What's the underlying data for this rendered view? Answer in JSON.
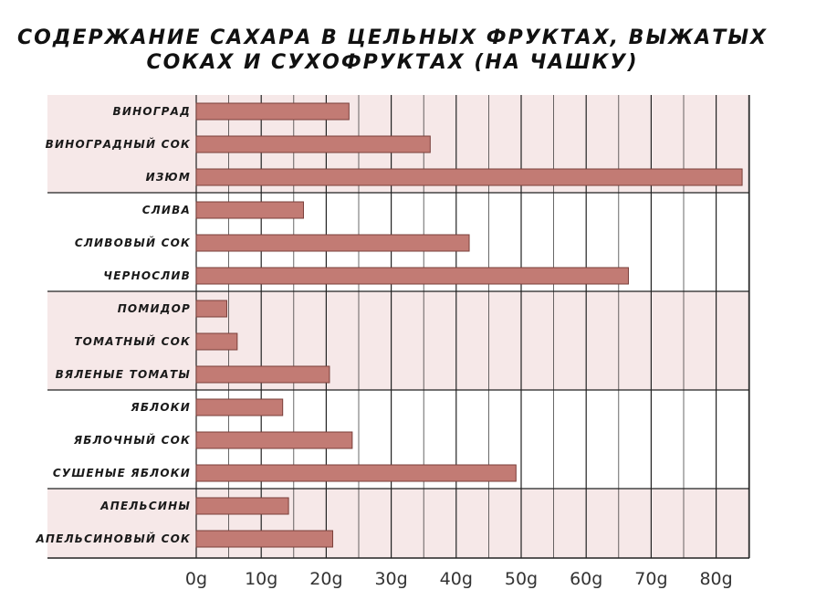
{
  "title": {
    "line1": "СОДЕРЖАНИЕ САХАРА В ЦЕЛЬНЫХ ФРУКТАХ, ВЫЖАТЫХ",
    "line2": "СОКАХ И СУХОФРУКТАХ (НА ЧАШКУ)"
  },
  "colors": {
    "bar": "#c27b74",
    "bar_stroke": "#7a3f3a",
    "band": "#f6e8e8",
    "grid": "#222222"
  },
  "chart_data": {
    "type": "bar",
    "orientation": "horizontal",
    "title": "СОДЕРЖАНИЕ САХАРА В ЦЕЛЬНЫХ ФРУКТАХ, ВЫЖАТЫХ СОКАХ И СУХОФРУКТАХ (НА ЧАШКУ)",
    "xlabel": "",
    "ylabel": "",
    "xlim": [
      0,
      85
    ],
    "ticks": [
      0,
      10,
      20,
      30,
      40,
      50,
      60,
      70,
      80
    ],
    "tick_labels": [
      "0g",
      "10g",
      "20g",
      "30g",
      "40g",
      "50g",
      "60g",
      "70g",
      "80g"
    ],
    "groups": [
      {
        "items": [
          {
            "label": "ВИНОГРАД",
            "value": 23.5
          },
          {
            "label": "ВИНОГРАДНЫЙ СОК",
            "value": 36
          },
          {
            "label": "ИЗЮМ",
            "value": 84
          }
        ]
      },
      {
        "items": [
          {
            "label": "СЛИВА",
            "value": 16.5
          },
          {
            "label": "СЛИВОВЫЙ СОК",
            "value": 42
          },
          {
            "label": "ЧЕРНОСЛИВ",
            "value": 66.5
          }
        ]
      },
      {
        "items": [
          {
            "label": "ПОМИДОР",
            "value": 4.7
          },
          {
            "label": "ТОМАТНЫЙ СОК",
            "value": 6.3
          },
          {
            "label": "ВЯЛЕНЫЕ ТОМАТЫ",
            "value": 20.5
          }
        ]
      },
      {
        "items": [
          {
            "label": "ЯБЛОКИ",
            "value": 13.3
          },
          {
            "label": "ЯБЛОЧНЫЙ СОК",
            "value": 24
          },
          {
            "label": "СУШЕНЫЕ ЯБЛОКИ",
            "value": 49.2
          }
        ]
      },
      {
        "items": [
          {
            "label": "АПЕЛЬСИНЫ",
            "value": 14.2
          },
          {
            "label": "АПЕЛЬСИНОВЫЙ СОК",
            "value": 21
          }
        ]
      }
    ]
  }
}
